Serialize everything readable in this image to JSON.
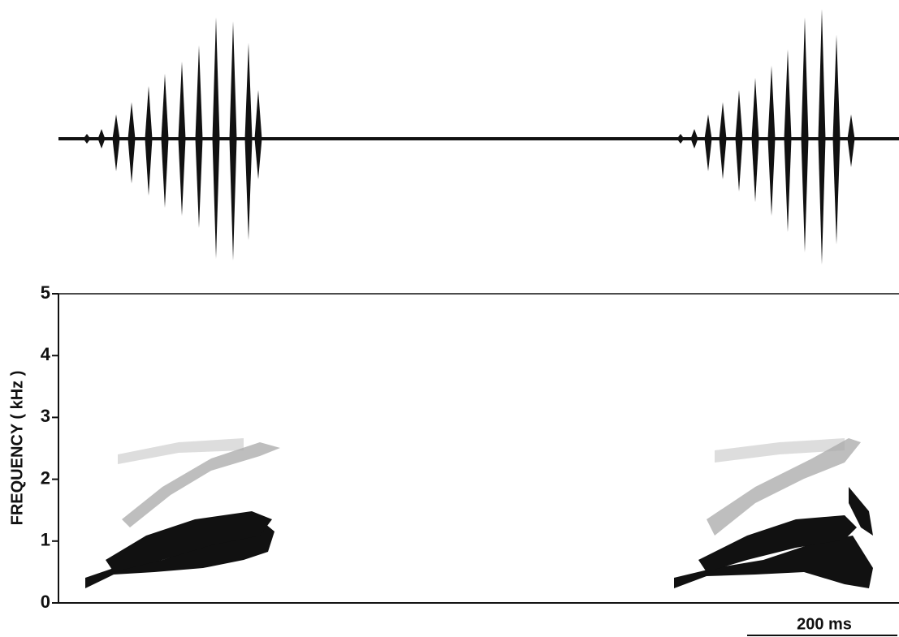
{
  "chart_data": {
    "type": "spectrogram",
    "ylabel": "FREQUENCY ( kHz )",
    "ylim": [
      0,
      5
    ],
    "yticks": [
      0,
      1,
      2,
      3,
      4,
      5
    ],
    "scale_bar": "200 ms"
  }
}
